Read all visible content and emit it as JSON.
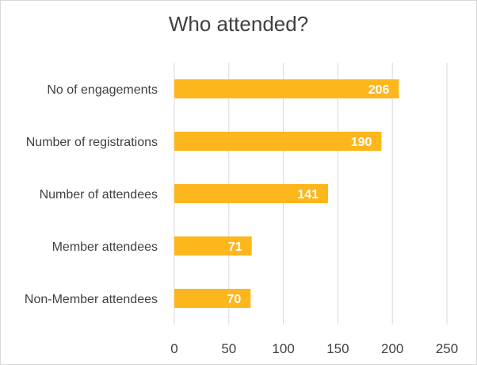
{
  "chart_data": {
    "type": "bar",
    "orientation": "horizontal",
    "title": "Who attended?",
    "categories": [
      "No of engagements",
      "Number of registrations",
      "Number of attendees",
      "Member attendees",
      "Non-Member attendees"
    ],
    "values": [
      206,
      190,
      141,
      71,
      70
    ],
    "data_labels": [
      "206",
      "190",
      "141",
      "71",
      "70"
    ],
    "xlim": [
      0,
      250
    ],
    "xticks": [
      0,
      50,
      100,
      150,
      200,
      250
    ],
    "xtick_labels": [
      "0",
      "50",
      "100",
      "150",
      "200",
      "250"
    ],
    "grid": "vertical",
    "legend": "none",
    "colors": {
      "bar": "#FDB61C",
      "grid": "#d9d9d9",
      "label_text": "#ffffff",
      "axis_text": "#404040"
    }
  }
}
